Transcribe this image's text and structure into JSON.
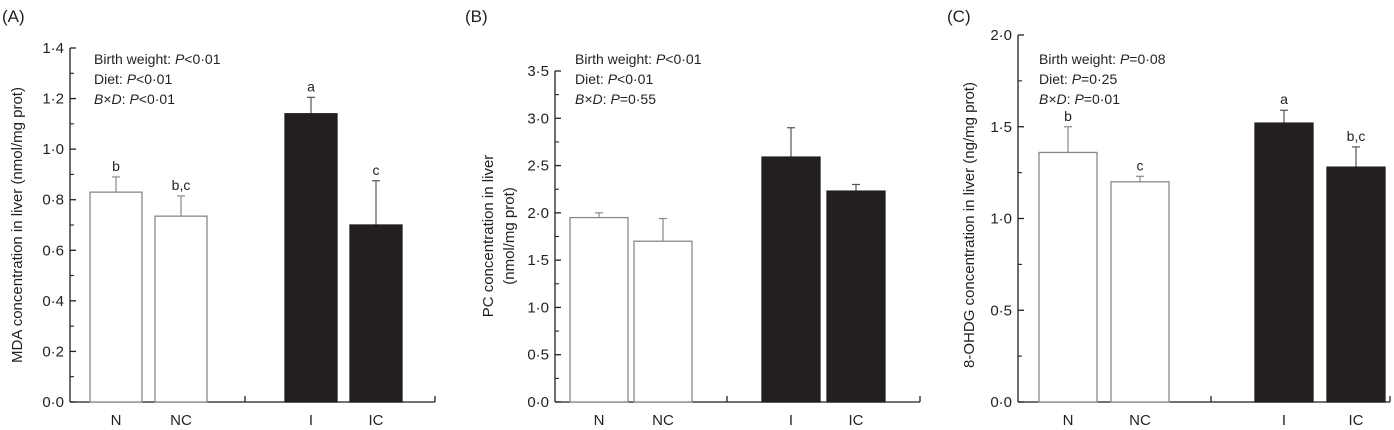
{
  "figure": {
    "colors": {
      "open_bar_fill": "#ffffff",
      "open_bar_stroke": "#888888",
      "filled_bar": "#231f20",
      "axis": "#231f20",
      "errorbar": "#888888"
    }
  },
  "chart_data": [
    {
      "type": "bar",
      "panel_label": "(A)",
      "ylabel": "MDA concentration in liver (nmol/mg prot)",
      "ylabel_lines": [
        "MDA concentration in liver (nmol/mg prot)"
      ],
      "xlabel": "",
      "ylim": [
        0,
        1.4
      ],
      "yticks": [
        0,
        0.2,
        0.4,
        0.6,
        0.8,
        1.0,
        1.2,
        1.4
      ],
      "ytick_labels": [
        "0·0",
        "0·2",
        "0·4",
        "0·6",
        "0·8",
        "1·0",
        "1·2",
        "1·4"
      ],
      "minor_ticks": true,
      "grid": false,
      "categories": [
        "N",
        "NC",
        "I",
        "IC"
      ],
      "groups": [
        "open",
        "open",
        "filled",
        "filled"
      ],
      "values": [
        0.83,
        0.735,
        1.14,
        0.7
      ],
      "errors": [
        0.06,
        0.08,
        0.065,
        0.175
      ],
      "significance_letters": [
        "b",
        "b,c",
        "a",
        "c"
      ],
      "stats": [
        {
          "label": "Birth weight: ",
          "p": "P",
          "rel": "<",
          "value": "0·01"
        },
        {
          "label": "Diet: ",
          "p": "P",
          "rel": "<",
          "value": "0·01"
        },
        {
          "label": "B×D",
          "p": "P",
          "rel": "<",
          "value": "0·01"
        }
      ]
    },
    {
      "type": "bar",
      "panel_label": "(B)",
      "ylabel": "PC concentration in liver (nmol/mg prot)",
      "ylabel_lines": [
        "PC concentration in liver",
        "(nmol/mg prot)"
      ],
      "xlabel": "",
      "ylim": [
        0,
        3.5
      ],
      "yticks": [
        0,
        0.5,
        1.0,
        1.5,
        2.0,
        2.5,
        3.0,
        3.5
      ],
      "ytick_labels": [
        "0·0",
        "0·5",
        "1·0",
        "1·5",
        "2·0",
        "2·5",
        "3·0",
        "3·5"
      ],
      "minor_ticks": true,
      "grid": false,
      "categories": [
        "N",
        "NC",
        "I",
        "IC"
      ],
      "groups": [
        "open",
        "open",
        "filled",
        "filled"
      ],
      "values": [
        1.95,
        1.7,
        2.59,
        2.23
      ],
      "errors": [
        0.05,
        0.24,
        0.31,
        0.07
      ],
      "significance_letters": [
        "",
        "",
        "",
        ""
      ],
      "stats": [
        {
          "label": "Birth weight: ",
          "p": "P",
          "rel": "<",
          "value": "0·01"
        },
        {
          "label": "Diet: ",
          "p": "P",
          "rel": "<",
          "value": "0·01"
        },
        {
          "label": "B×D",
          "p": "P",
          "rel": "=",
          "value": "0·55"
        }
      ]
    },
    {
      "type": "bar",
      "panel_label": "(C)",
      "ylabel": "8-OHDG concentration in liver (ng/mg prot)",
      "ylabel_lines": [
        "8-OHDG concentration in liver (ng/mg prot)"
      ],
      "xlabel": "",
      "ylim": [
        0,
        2.0
      ],
      "yticks": [
        0,
        0.5,
        1.0,
        1.5,
        2.0
      ],
      "ytick_labels": [
        "0·0",
        "0·5",
        "1·0",
        "1·5",
        "2·0"
      ],
      "minor_ticks": true,
      "grid": false,
      "categories": [
        "N",
        "NC",
        "I",
        "IC"
      ],
      "groups": [
        "open",
        "open",
        "filled",
        "filled"
      ],
      "values": [
        1.36,
        1.2,
        1.52,
        1.28
      ],
      "errors": [
        0.14,
        0.03,
        0.07,
        0.11
      ],
      "significance_letters": [
        "b",
        "c",
        "a",
        "b,c"
      ],
      "stats": [
        {
          "label": "Birth weight: ",
          "p": "P",
          "rel": "=",
          "value": "0·08"
        },
        {
          "label": "Diet: ",
          "p": "P",
          "rel": "=",
          "value": "0·25"
        },
        {
          "label": "B×D",
          "p": "P",
          "rel": "=",
          "value": "0·01"
        }
      ]
    }
  ]
}
